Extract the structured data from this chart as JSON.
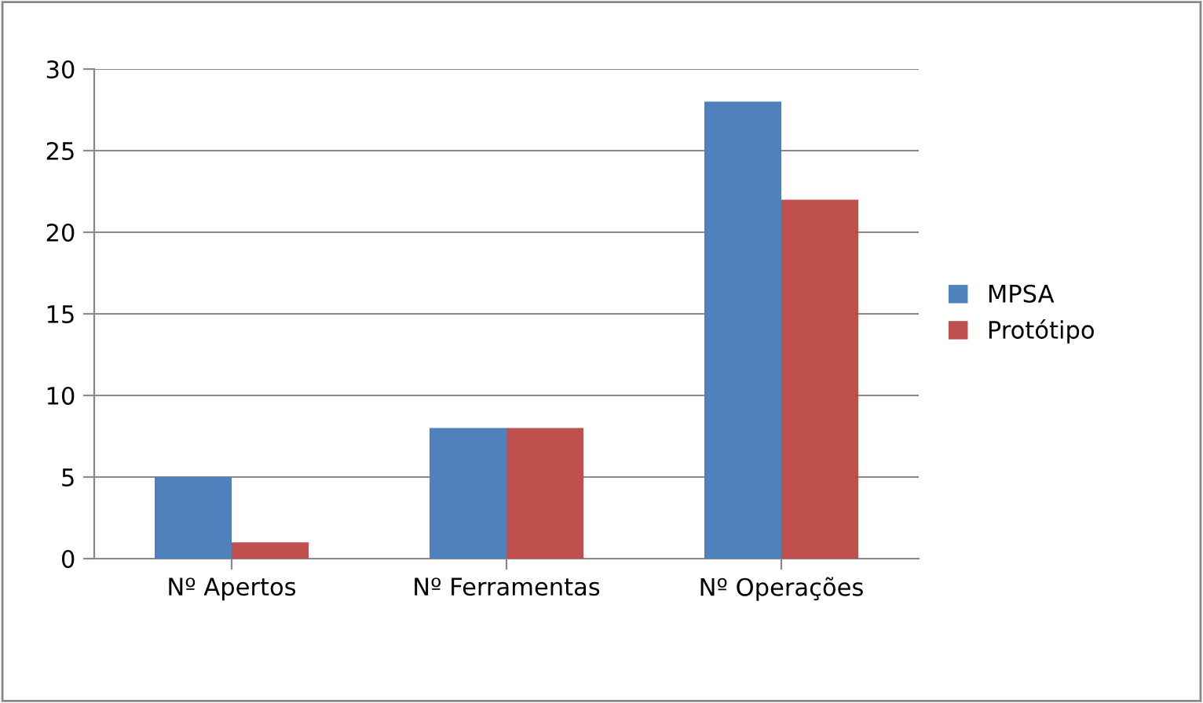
{
  "chart_data": {
    "type": "bar",
    "categories": [
      "Nº Apertos",
      "Nº Ferramentas",
      "Nº Operações"
    ],
    "series": [
      {
        "name": "MPSA",
        "color": "#4f81bd",
        "values": [
          5,
          8,
          28
        ]
      },
      {
        "name": "Protótipo",
        "color": "#c0504d",
        "values": [
          1,
          8,
          22
        ]
      }
    ],
    "ylim": [
      0,
      30
    ],
    "yticks": [
      0,
      5,
      10,
      15,
      20,
      25,
      30
    ],
    "grid": "y",
    "legend": "right"
  }
}
